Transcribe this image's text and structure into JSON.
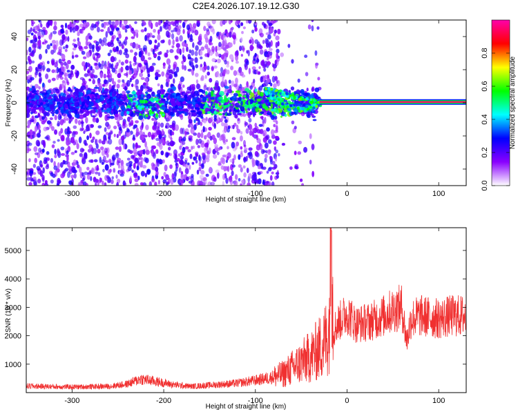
{
  "title": "C2E4.2026.107.19.12.G30",
  "chart_data": [
    {
      "type": "heatmap",
      "xlabel": "Height of straight line (km)",
      "ylabel": "Frequency (Hz)",
      "xlim": [
        -350,
        130
      ],
      "ylim": [
        -50,
        50
      ],
      "x_ticks": [
        -300,
        -200,
        -100,
        0,
        100
      ],
      "y_ticks": [
        -40,
        -20,
        0,
        20,
        40
      ],
      "colorbar": {
        "label": "Normalized spectral amplitude",
        "range": [
          0,
          1
        ],
        "ticks": [
          0.0,
          0.2,
          0.4,
          0.6,
          0.8
        ],
        "tick_labels": [
          "0.0",
          "0.2",
          "0.4",
          "0.6",
          "0.8"
        ],
        "colors": [
          "#ffffff",
          "#8a00ff",
          "#0000ff",
          "#00ffff",
          "#00ff00",
          "#ffff00",
          "#ff0000",
          "#ff00aa"
        ]
      },
      "features": [
        {
          "x_start": -350,
          "x_end": -30,
          "freq_center": 0,
          "freq_spread": 8,
          "amplitude": 0.25
        },
        {
          "x_start": -30,
          "x_end": 130,
          "freq_center": 0.5,
          "freq_spread": 1,
          "amplitude": 0.95
        }
      ]
    },
    {
      "type": "line",
      "xlabel": "Height of straight line (km)",
      "ylabel": "SNR (10 * v/v)",
      "xlim": [
        -350,
        130
      ],
      "ylim": [
        0,
        5800
      ],
      "x_ticks": [
        -300,
        -200,
        -100,
        0,
        100
      ],
      "y_ticks": [
        1000,
        2000,
        3000,
        4000,
        5000
      ],
      "color": "#f03030",
      "series": [
        {
          "x": [
            -350,
            -300,
            -260,
            -240,
            -225,
            -210,
            -190,
            -170,
            -150,
            -120,
            -100,
            -85,
            -70,
            -60,
            -50,
            -40,
            -30,
            -25,
            -20,
            -17,
            -15,
            -10,
            0,
            10,
            25,
            40,
            50,
            60,
            65,
            70,
            80,
            100,
            115,
            130
          ],
          "values": [
            230,
            200,
            220,
            300,
            480,
            400,
            280,
            220,
            260,
            330,
            430,
            520,
            650,
            860,
            1060,
            1260,
            1560,
            1800,
            2050,
            5700,
            2200,
            2450,
            2800,
            2400,
            2500,
            2700,
            2900,
            3000,
            1800,
            2600,
            2700,
            2600,
            2700,
            2700
          ]
        }
      ]
    }
  ]
}
